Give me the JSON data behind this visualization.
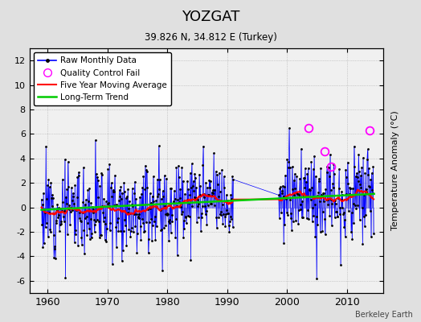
{
  "title": "YOZGAT",
  "subtitle": "39.826 N, 34.812 E (Turkey)",
  "ylabel": "Temperature Anomaly (°C)",
  "credit": "Berkeley Earth",
  "xlim": [
    1957,
    2016
  ],
  "ylim": [
    -7,
    13
  ],
  "yticks": [
    -6,
    -4,
    -2,
    0,
    2,
    4,
    6,
    8,
    10,
    12
  ],
  "xticks": [
    1960,
    1970,
    1980,
    1990,
    2000,
    2010
  ],
  "bg_color": "#e0e0e0",
  "plot_bg_color": "#f0f0f0",
  "seed": 12,
  "start_year": 1959.0,
  "end_year": 2014.5,
  "gap_start": 1991.0,
  "gap_end": 1998.5,
  "trend_y0": -0.2,
  "trend_y1": 1.1,
  "noise_std": 1.8,
  "ma_window": 48,
  "qc_fail_years": [
    2003.5,
    2006.2,
    2007.3,
    2013.8
  ],
  "qc_fail_vals": [
    6.5,
    4.6,
    3.3,
    6.3
  ]
}
